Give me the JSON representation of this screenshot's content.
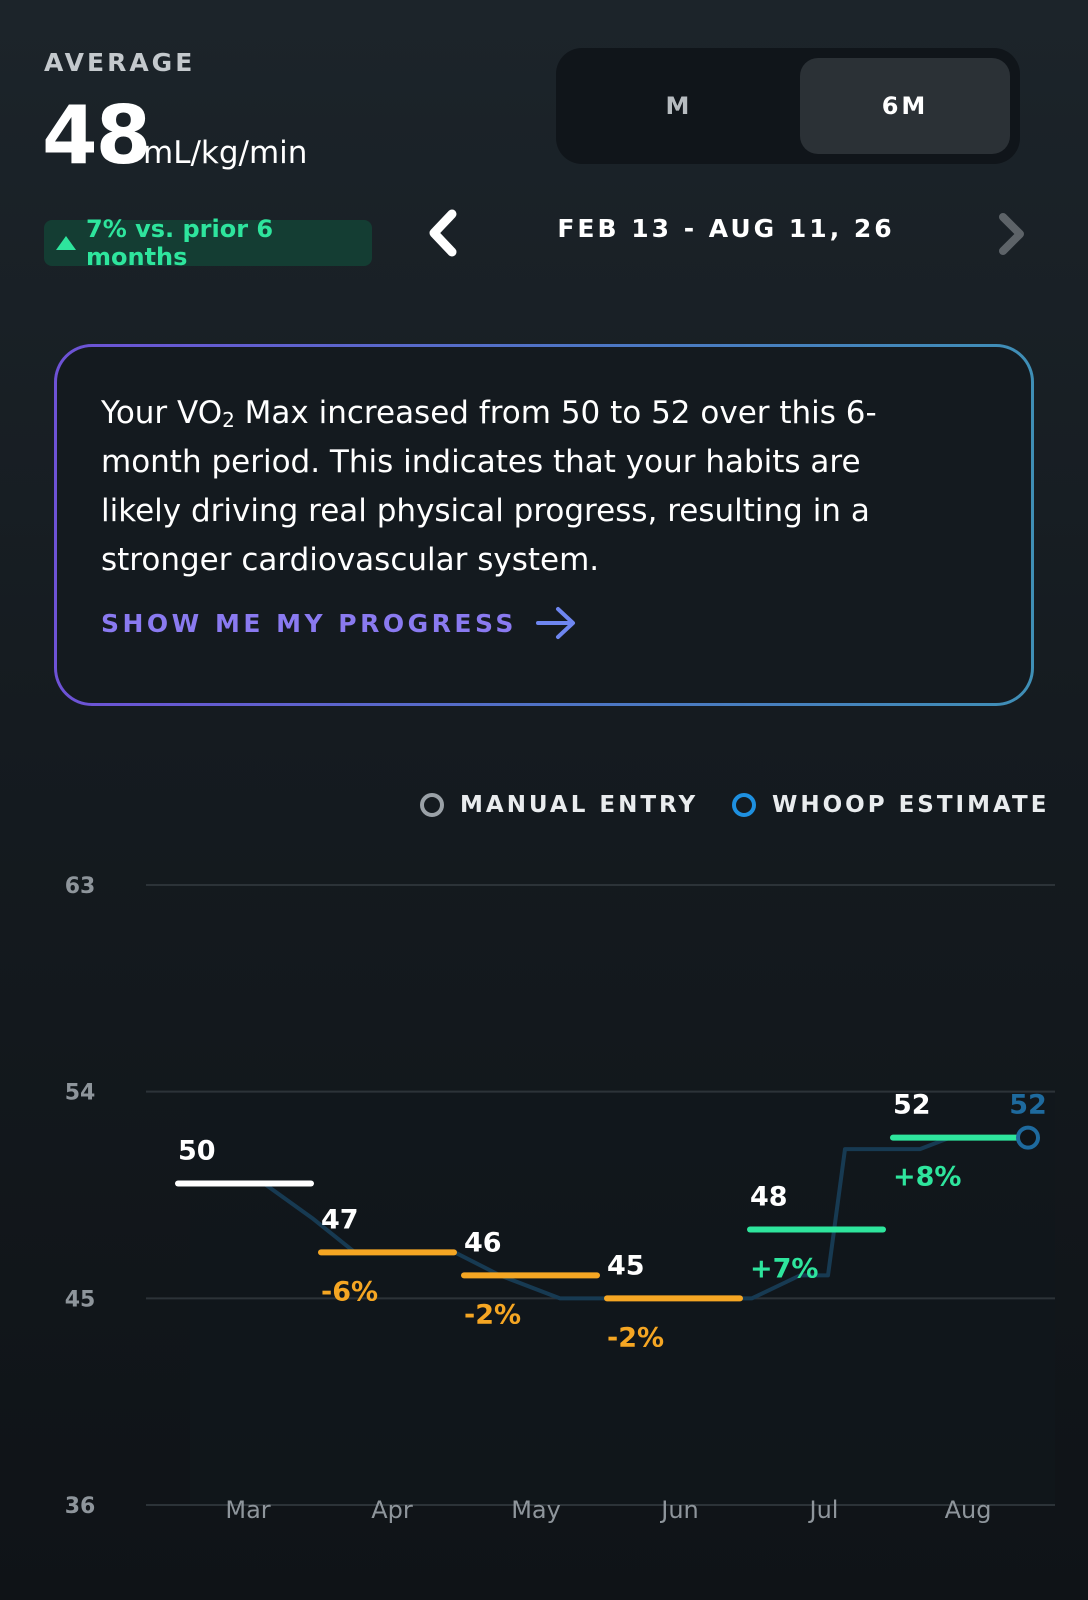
{
  "header": {
    "average_label": "AVERAGE",
    "average_value": "48",
    "unit": "mL/kg/min",
    "trend_text": "7% vs. prior 6 months",
    "trend_direction": "up",
    "trend_color": "#2EE59D"
  },
  "range_selector": {
    "options": [
      "M",
      "6M"
    ],
    "selected": "6M"
  },
  "date_nav": {
    "range_text": "FEB 13 - AUG 11, 26",
    "prev_icon": "chevron-left-icon",
    "next_icon": "chevron-right-icon"
  },
  "insight": {
    "text_before": "Your VO",
    "subscript": "2",
    "text_after": " Max increased from 50 to 52 over this 6-month period. This indicates that your habits are likely driving real physical progress, resulting in a stronger cardiovascular system.",
    "cta_label": "SHOW ME MY PROGRESS",
    "cta_icon": "arrow-right-icon"
  },
  "legend": {
    "manual": {
      "label": "MANUAL ENTRY",
      "color": "#9AA1A7"
    },
    "estimate": {
      "label": "WHOOP ESTIMATE",
      "color": "#1E90E0"
    }
  },
  "chart_data": {
    "type": "line",
    "y_ticks": [
      63,
      54,
      45,
      36
    ],
    "ylim": [
      36,
      63
    ],
    "x_ticks": [
      "Mar",
      "Apr",
      "May",
      "Jun",
      "Jul",
      "Aug"
    ],
    "grid": true,
    "monthly_averages": [
      {
        "value": "50",
        "change": "",
        "color": "#FFFFFF"
      },
      {
        "value": "47",
        "change": "-6%",
        "color": "#F5A623"
      },
      {
        "value": "46",
        "change": "-2%",
        "color": "#F5A623"
      },
      {
        "value": "45",
        "change": "-2%",
        "color": "#F5A623"
      },
      {
        "value": "48",
        "change": "+7%",
        "color": "#2EE59D"
      },
      {
        "value": "52",
        "change": "+8%",
        "color": "#2EE59D"
      }
    ],
    "whoop_estimate_series": [
      50,
      50,
      48.5,
      47,
      47,
      47,
      46,
      45,
      45,
      45,
      45,
      46,
      46,
      51.5,
      51.5,
      52,
      52
    ],
    "latest_point": {
      "value": "52",
      "color": "#1E6A9E"
    }
  }
}
